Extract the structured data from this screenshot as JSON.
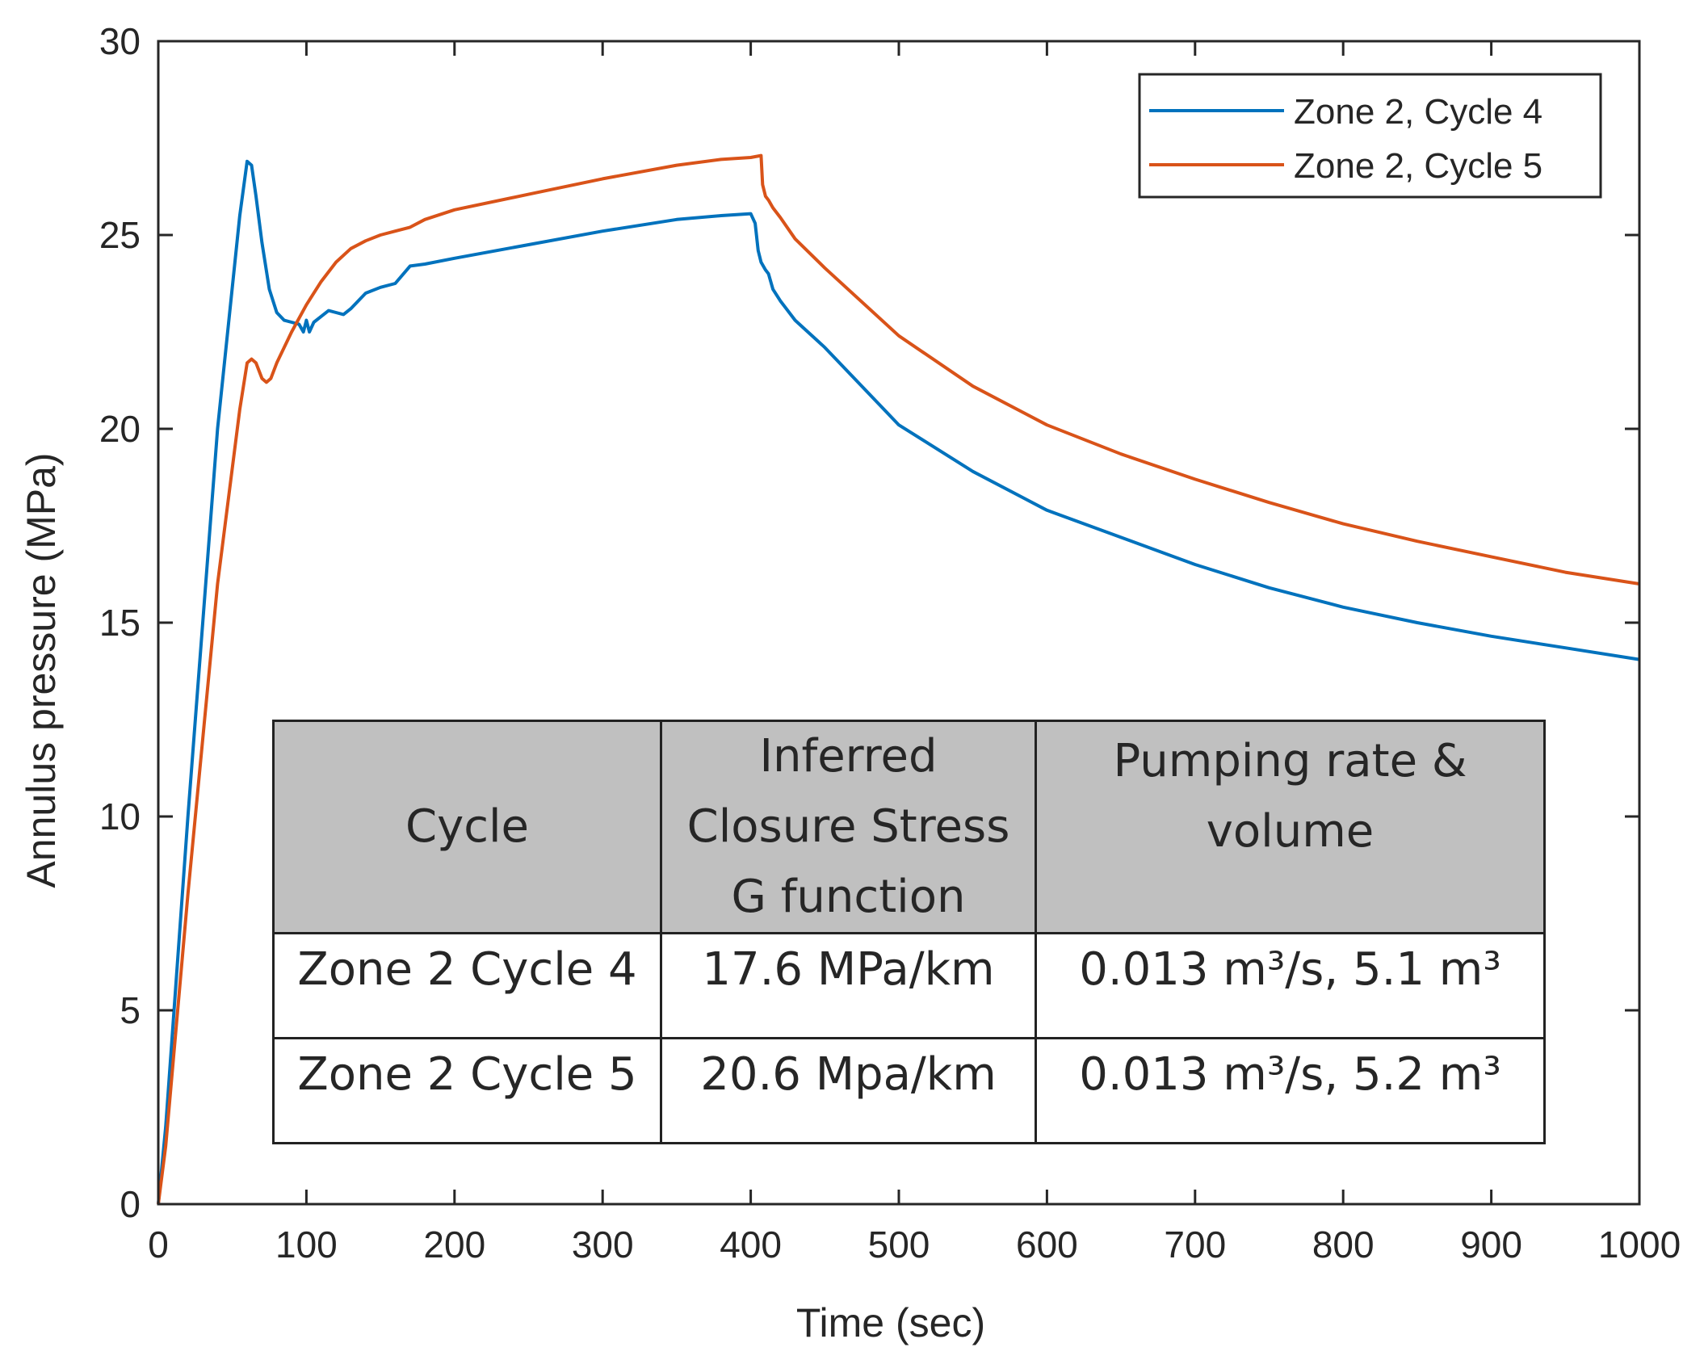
{
  "chart_data": {
    "type": "line",
    "title": "",
    "xlabel": "Time (sec)",
    "ylabel": "Annulus pressure (MPa)",
    "xlim": [
      0,
      1000
    ],
    "ylim": [
      0,
      30
    ],
    "x_ticks": [
      "0",
      "100",
      "200",
      "300",
      "400",
      "500",
      "600",
      "700",
      "800",
      "900",
      "1000"
    ],
    "y_ticks": [
      "0",
      "5",
      "10",
      "15",
      "20",
      "25",
      "30"
    ],
    "grid": false,
    "legend_position": "top-right",
    "series": [
      {
        "name": "Zone 2, Cycle 4",
        "color": "#0072BD",
        "x": [
          0,
          5,
          20,
          40,
          55,
          60,
          63,
          66,
          70,
          75,
          80,
          85,
          90,
          95,
          98,
          100,
          102,
          105,
          110,
          115,
          120,
          125,
          130,
          135,
          140,
          150,
          160,
          170,
          180,
          200,
          250,
          300,
          350,
          380,
          400,
          403,
          405,
          407,
          410,
          412,
          415,
          420,
          430,
          450,
          500,
          550,
          600,
          650,
          700,
          750,
          800,
          850,
          900,
          950,
          1000
        ],
        "y": [
          0,
          2,
          10,
          20,
          25.5,
          26.9,
          26.8,
          26.0,
          24.8,
          23.6,
          23.0,
          22.8,
          22.75,
          22.7,
          22.5,
          22.8,
          22.5,
          22.75,
          22.9,
          23.05,
          23.0,
          22.95,
          23.1,
          23.3,
          23.5,
          23.65,
          23.75,
          24.2,
          24.25,
          24.4,
          24.75,
          25.1,
          25.4,
          25.5,
          25.55,
          25.3,
          24.6,
          24.3,
          24.1,
          24.0,
          23.6,
          23.3,
          22.8,
          22.1,
          20.1,
          18.9,
          17.9,
          17.2,
          16.5,
          15.9,
          15.4,
          15.0,
          14.65,
          14.35,
          14.05
        ]
      },
      {
        "name": "Zone 2, Cycle 5",
        "color": "#D95319",
        "x": [
          0,
          5,
          20,
          40,
          55,
          60,
          63,
          66,
          70,
          73,
          76,
          80,
          90,
          100,
          110,
          120,
          130,
          140,
          150,
          160,
          170,
          180,
          200,
          250,
          300,
          350,
          380,
          400,
          407,
          408,
          410,
          412,
          415,
          420,
          430,
          450,
          500,
          550,
          600,
          650,
          700,
          750,
          800,
          850,
          900,
          950,
          1000
        ],
        "y": [
          0,
          1.5,
          8,
          16,
          20.5,
          21.7,
          21.8,
          21.7,
          21.3,
          21.2,
          21.3,
          21.7,
          22.5,
          23.2,
          23.8,
          24.3,
          24.65,
          24.85,
          25.0,
          25.1,
          25.2,
          25.4,
          25.65,
          26.05,
          26.45,
          26.8,
          26.95,
          27.0,
          27.05,
          26.3,
          26.0,
          25.9,
          25.7,
          25.45,
          24.9,
          24.15,
          22.4,
          21.1,
          20.1,
          19.35,
          18.7,
          18.1,
          17.55,
          17.1,
          16.7,
          16.3,
          16.0
        ]
      }
    ],
    "table": {
      "headers": [
        [
          "Cycle"
        ],
        [
          "Inferred",
          "Closure Stress",
          "G function"
        ],
        [
          "Pumping rate &",
          "volume"
        ]
      ],
      "rows": [
        [
          "Zone 2 Cycle 4",
          "17.6 MPa/km",
          "0.013 m³/s, 5.1 m³"
        ],
        [
          "Zone 2 Cycle 5",
          "20.6 Mpa/km",
          "0.013 m³/s, 5.2 m³"
        ]
      ]
    }
  }
}
